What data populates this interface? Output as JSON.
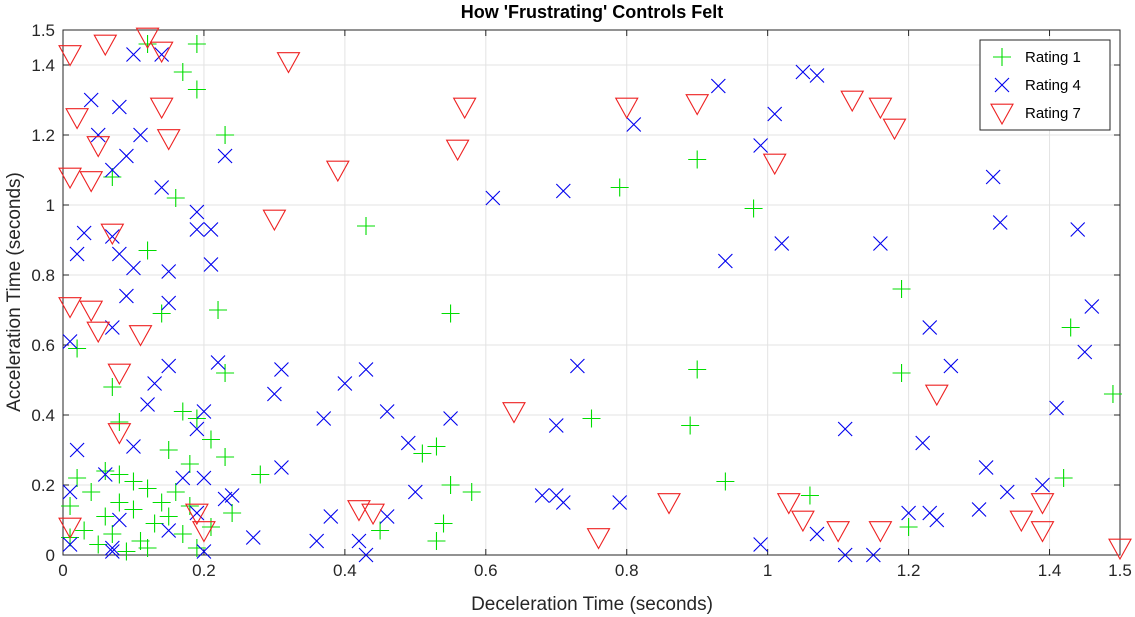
{
  "chart_data": {
    "type": "scatter",
    "title": "How 'Frustrating' Controls Felt",
    "xlabel": "Deceleration Time (seconds)",
    "ylabel": "Acceleration Time (seconds)",
    "xlim": [
      0,
      1.5
    ],
    "ylim": [
      0,
      1.5
    ],
    "xticks": [
      "0",
      "0.2",
      "0.4",
      "0.6",
      "0.8",
      "1",
      "1.2",
      "1.4",
      "1.5"
    ],
    "yticks": [
      "0",
      "0.2",
      "0.4",
      "0.6",
      "0.8",
      "1",
      "1.2",
      "1.4",
      "1.5"
    ],
    "grid": true,
    "legend_position": "top-right",
    "series": [
      {
        "name": "Rating 1",
        "marker": "plus",
        "color": "#00dd00",
        "points": [
          [
            0.12,
            1.46
          ],
          [
            0.19,
            1.46
          ],
          [
            0.17,
            1.38
          ],
          [
            0.19,
            1.33
          ],
          [
            0.23,
            1.2
          ],
          [
            0.16,
            1.02
          ],
          [
            0.07,
            1.08
          ],
          [
            0.12,
            0.87
          ],
          [
            0.43,
            0.94
          ],
          [
            0.22,
            0.7
          ],
          [
            0.14,
            0.69
          ],
          [
            0.55,
            0.69
          ],
          [
            0.02,
            0.59
          ],
          [
            0.07,
            0.48
          ],
          [
            0.08,
            0.38
          ],
          [
            0.17,
            0.41
          ],
          [
            0.23,
            0.52
          ],
          [
            0.9,
            0.53
          ],
          [
            0.9,
            1.13
          ],
          [
            0.79,
            1.05
          ],
          [
            0.98,
            0.99
          ],
          [
            1.19,
            0.76
          ],
          [
            1.19,
            0.52
          ],
          [
            1.43,
            0.65
          ],
          [
            1.49,
            0.46
          ],
          [
            0.75,
            0.39
          ],
          [
            0.89,
            0.37
          ],
          [
            0.94,
            0.21
          ],
          [
            1.06,
            0.17
          ],
          [
            1.42,
            0.22
          ],
          [
            1.2,
            0.08
          ],
          [
            0.53,
            0.31
          ],
          [
            0.51,
            0.29
          ],
          [
            0.55,
            0.2
          ],
          [
            0.58,
            0.18
          ],
          [
            0.54,
            0.09
          ],
          [
            0.53,
            0.04
          ],
          [
            0.45,
            0.07
          ],
          [
            0.28,
            0.23
          ],
          [
            0.24,
            0.12
          ],
          [
            0.23,
            0.28
          ],
          [
            0.21,
            0.33
          ],
          [
            0.19,
            0.39
          ],
          [
            0.15,
            0.3
          ],
          [
            0.18,
            0.26
          ],
          [
            0.16,
            0.18
          ],
          [
            0.14,
            0.15
          ],
          [
            0.12,
            0.19
          ],
          [
            0.1,
            0.21
          ],
          [
            0.08,
            0.23
          ],
          [
            0.06,
            0.24
          ],
          [
            0.04,
            0.18
          ],
          [
            0.02,
            0.22
          ],
          [
            0.01,
            0.14
          ],
          [
            0.03,
            0.07
          ],
          [
            0.05,
            0.03
          ],
          [
            0.07,
            0.06
          ],
          [
            0.09,
            0.01
          ],
          [
            0.11,
            0.04
          ],
          [
            0.13,
            0.09
          ],
          [
            0.15,
            0.11
          ],
          [
            0.17,
            0.06
          ],
          [
            0.19,
            0.02
          ],
          [
            0.21,
            0.08
          ],
          [
            0.1,
            0.13
          ],
          [
            0.08,
            0.15
          ],
          [
            0.06,
            0.11
          ],
          [
            0.12,
            0.02
          ],
          [
            0.18,
            0.14
          ],
          [
            0.01,
            0.05
          ]
        ]
      },
      {
        "name": "Rating 4",
        "marker": "x",
        "color": "#0000ee",
        "points": [
          [
            0.1,
            1.43
          ],
          [
            0.14,
            1.43
          ],
          [
            0.04,
            1.3
          ],
          [
            0.08,
            1.28
          ],
          [
            0.05,
            1.2
          ],
          [
            0.11,
            1.2
          ],
          [
            0.09,
            1.14
          ],
          [
            0.23,
            1.14
          ],
          [
            0.14,
            1.05
          ],
          [
            0.07,
            1.1
          ],
          [
            0.19,
            0.98
          ],
          [
            0.19,
            0.93
          ],
          [
            0.21,
            0.93
          ],
          [
            0.03,
            0.92
          ],
          [
            0.07,
            0.91
          ],
          [
            0.02,
            0.86
          ],
          [
            0.08,
            0.86
          ],
          [
            0.1,
            0.82
          ],
          [
            0.15,
            0.81
          ],
          [
            0.21,
            0.83
          ],
          [
            0.09,
            0.74
          ],
          [
            0.15,
            0.72
          ],
          [
            0.07,
            0.65
          ],
          [
            0.01,
            0.61
          ],
          [
            0.15,
            0.54
          ],
          [
            0.13,
            0.49
          ],
          [
            0.22,
            0.55
          ],
          [
            0.31,
            0.53
          ],
          [
            0.43,
            0.53
          ],
          [
            0.4,
            0.49
          ],
          [
            0.3,
            0.46
          ],
          [
            0.12,
            0.43
          ],
          [
            0.2,
            0.41
          ],
          [
            0.37,
            0.39
          ],
          [
            0.46,
            0.41
          ],
          [
            0.55,
            0.39
          ],
          [
            0.61,
            1.02
          ],
          [
            0.71,
            1.04
          ],
          [
            0.81,
            1.23
          ],
          [
            0.93,
            1.34
          ],
          [
            1.01,
            1.26
          ],
          [
            1.05,
            1.38
          ],
          [
            1.07,
            1.37
          ],
          [
            0.99,
            1.17
          ],
          [
            0.94,
            0.84
          ],
          [
            1.02,
            0.89
          ],
          [
            1.16,
            0.89
          ],
          [
            1.32,
            1.08
          ],
          [
            1.33,
            0.95
          ],
          [
            1.44,
            0.93
          ],
          [
            1.46,
            0.71
          ],
          [
            1.45,
            0.58
          ],
          [
            1.23,
            0.65
          ],
          [
            1.26,
            0.54
          ],
          [
            1.41,
            0.42
          ],
          [
            0.73,
            0.54
          ],
          [
            0.7,
            0.37
          ],
          [
            1.11,
            0.36
          ],
          [
            1.22,
            0.32
          ],
          [
            1.31,
            0.25
          ],
          [
            1.34,
            0.18
          ],
          [
            1.39,
            0.2
          ],
          [
            1.3,
            0.13
          ],
          [
            1.2,
            0.12
          ],
          [
            1.23,
            0.12
          ],
          [
            1.24,
            0.1
          ],
          [
            1.15,
            0.0
          ],
          [
            1.11,
            0.0
          ],
          [
            1.07,
            0.06
          ],
          [
            0.99,
            0.03
          ],
          [
            0.79,
            0.15
          ],
          [
            0.71,
            0.15
          ],
          [
            0.68,
            0.17
          ],
          [
            0.7,
            0.17
          ],
          [
            0.5,
            0.18
          ],
          [
            0.49,
            0.32
          ],
          [
            0.31,
            0.25
          ],
          [
            0.24,
            0.17
          ],
          [
            0.23,
            0.16
          ],
          [
            0.27,
            0.05
          ],
          [
            0.36,
            0.04
          ],
          [
            0.38,
            0.11
          ],
          [
            0.42,
            0.04
          ],
          [
            0.43,
            0.0
          ],
          [
            0.46,
            0.11
          ],
          [
            0.2,
            0.22
          ],
          [
            0.17,
            0.22
          ],
          [
            0.19,
            0.12
          ],
          [
            0.2,
            0.01
          ],
          [
            0.07,
            0.02
          ],
          [
            0.08,
            0.1
          ],
          [
            0.1,
            0.31
          ],
          [
            0.06,
            0.23
          ],
          [
            0.02,
            0.3
          ],
          [
            0.01,
            0.18
          ],
          [
            0.01,
            0.03
          ],
          [
            0.15,
            0.07
          ],
          [
            0.19,
            0.36
          ],
          [
            0.07,
            0.01
          ]
        ]
      },
      {
        "name": "Rating 7",
        "marker": "triangle-down",
        "color": "#ee2222",
        "points": [
          [
            0.12,
            1.48
          ],
          [
            0.06,
            1.46
          ],
          [
            0.01,
            1.43
          ],
          [
            0.32,
            1.41
          ],
          [
            0.14,
            1.44
          ],
          [
            0.02,
            1.25
          ],
          [
            0.14,
            1.28
          ],
          [
            0.57,
            1.28
          ],
          [
            0.8,
            1.28
          ],
          [
            0.9,
            1.29
          ],
          [
            1.12,
            1.3
          ],
          [
            1.16,
            1.28
          ],
          [
            1.18,
            1.22
          ],
          [
            0.15,
            1.19
          ],
          [
            0.05,
            1.17
          ],
          [
            0.56,
            1.16
          ],
          [
            1.01,
            1.12
          ],
          [
            0.39,
            1.1
          ],
          [
            0.01,
            1.08
          ],
          [
            0.04,
            1.07
          ],
          [
            0.3,
            0.96
          ],
          [
            0.07,
            0.92
          ],
          [
            0.01,
            0.71
          ],
          [
            0.04,
            0.7
          ],
          [
            0.05,
            0.64
          ],
          [
            0.11,
            0.63
          ],
          [
            0.08,
            0.52
          ],
          [
            1.24,
            0.46
          ],
          [
            0.64,
            0.41
          ],
          [
            0.08,
            0.35
          ],
          [
            0.42,
            0.13
          ],
          [
            0.44,
            0.12
          ],
          [
            0.86,
            0.15
          ],
          [
            1.03,
            0.15
          ],
          [
            1.05,
            0.1
          ],
          [
            1.1,
            0.07
          ],
          [
            1.16,
            0.07
          ],
          [
            1.36,
            0.1
          ],
          [
            1.39,
            0.15
          ],
          [
            1.39,
            0.07
          ],
          [
            1.5,
            0.02
          ],
          [
            0.76,
            0.05
          ],
          [
            0.01,
            0.08
          ],
          [
            0.19,
            0.12
          ],
          [
            0.2,
            0.07
          ]
        ]
      }
    ]
  }
}
